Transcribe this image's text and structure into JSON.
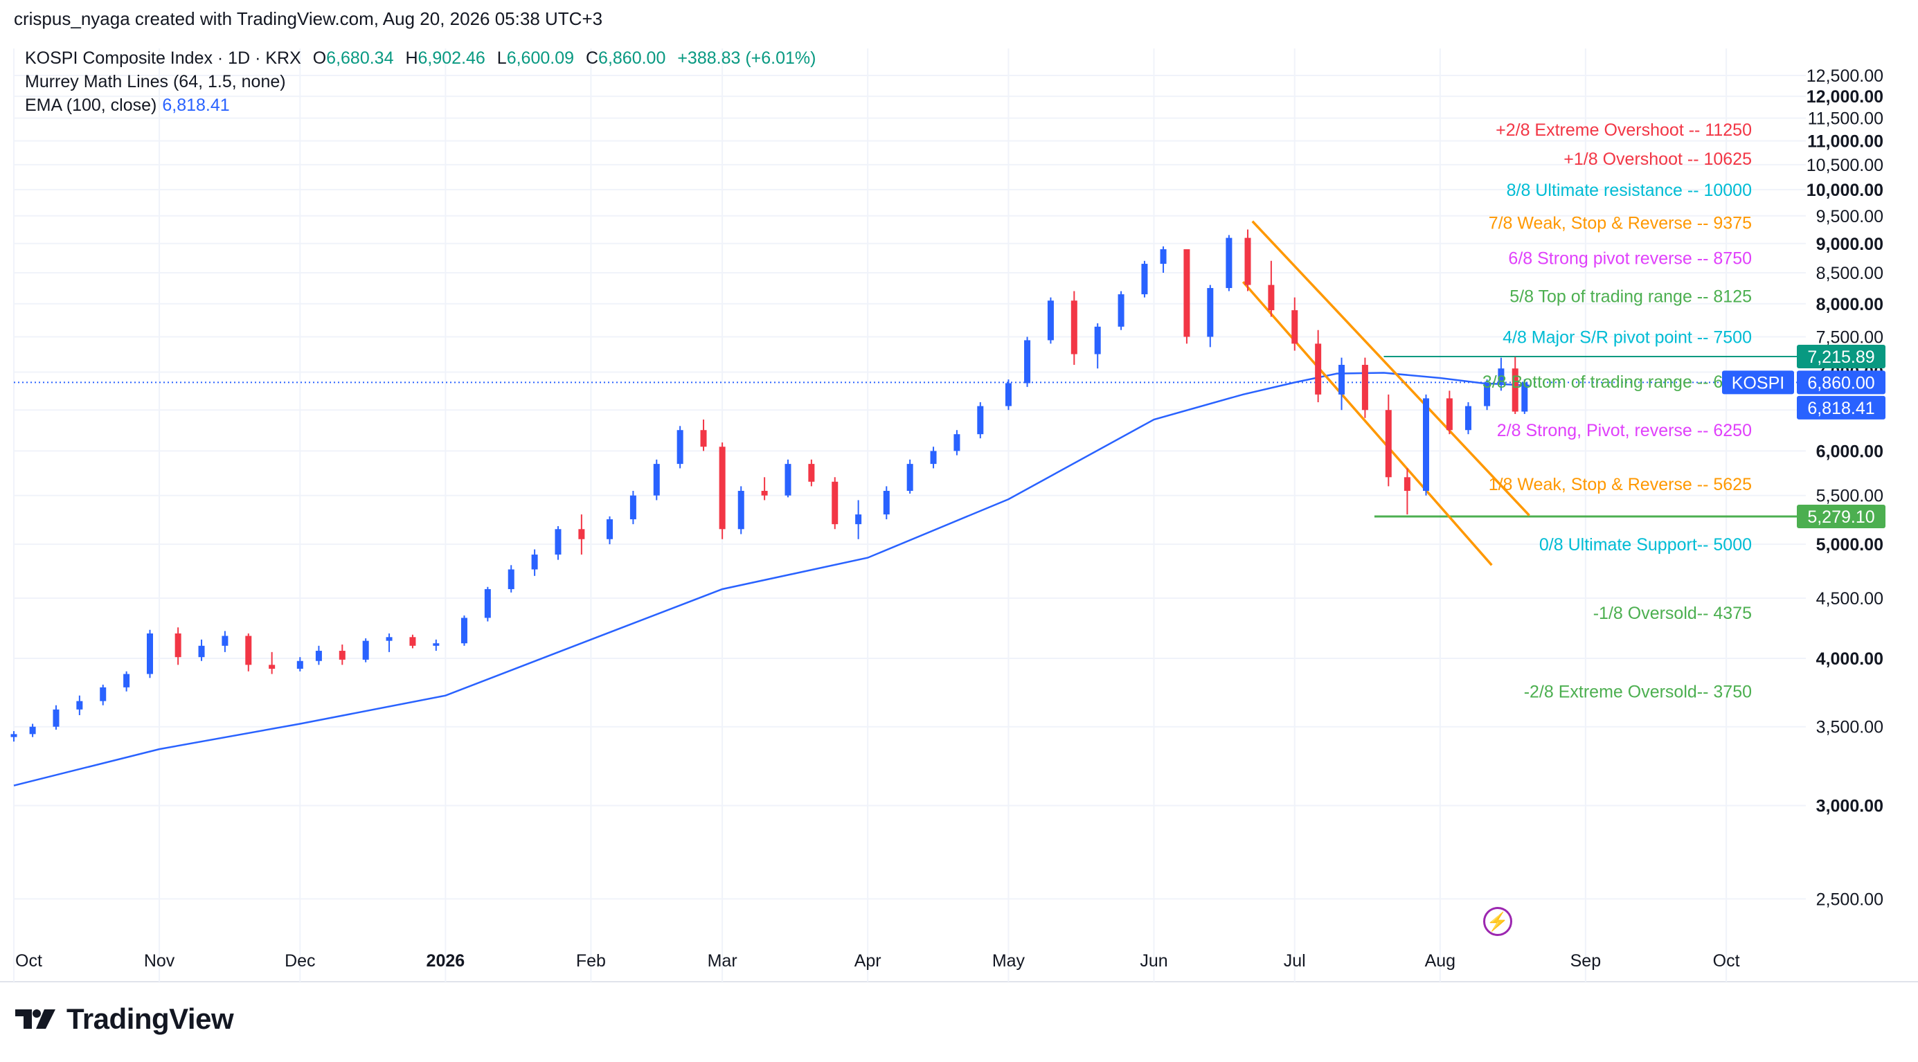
{
  "header": {
    "author_line": "crispus_nyaga created with TradingView.com, Aug 20, 2026 05:38 UTC+3"
  },
  "legend": {
    "symbol": "KOSPI Composite Index · 1D · KRX",
    "o_label": "O",
    "o_value": "6,680.34",
    "h_label": "H",
    "h_value": "6,902.46",
    "l_label": "L",
    "l_value": "6,600.09",
    "c_label": "C",
    "c_value": "6,860.00",
    "change": "+388.83 (+6.01%)",
    "indicator1": "Murrey Math Lines (64, 1.5, none)",
    "indicator2": "EMA (100, close)",
    "indicator2_value": "6,818.41"
  },
  "brand": {
    "name": "TradingView"
  },
  "colors": {
    "up": "#2962ff",
    "down": "#f23645",
    "ema": "#2962ff",
    "channel": "#ff9800",
    "support": "#4caf50",
    "resistance": "#089981",
    "grid": "#f0f3fa",
    "axis_text": "#131722"
  },
  "chart_data": {
    "type": "candlestick",
    "title": "KOSPI Composite Index · 1D · KRX",
    "y_axis": {
      "scale": "log",
      "ticks": [
        "2,500.00",
        "3,000.00",
        "3,500.00",
        "4,000.00",
        "4,500.00",
        "5,000.00",
        "5,500.00",
        "6,000.00",
        "6,500.00",
        "7,000.00",
        "7,500.00",
        "8,000.00",
        "8,500.00",
        "9,000.00",
        "9,500.00",
        "10,000.00",
        "10,500.00",
        "11,000.00",
        "11,500.00",
        "12,000.00",
        "12,500.00"
      ],
      "bold_ticks": [
        "3,000.00",
        "4,000.00",
        "5,000.00",
        "6,000.00",
        "7,000.00",
        "8,000.00",
        "9,000.00",
        "10,000.00",
        "11,000.00",
        "12,000.00"
      ],
      "range": [
        2300,
        13000
      ]
    },
    "x_axis": {
      "labels": [
        "Oct",
        "Nov",
        "Dec",
        "2026",
        "Feb",
        "Mar",
        "Apr",
        "May",
        "Jun",
        "Jul",
        "Aug",
        "Sep",
        "Oct"
      ],
      "bold_labels": [
        "2026"
      ],
      "range": [
        "2025-10-01",
        "2026-10-15"
      ]
    },
    "price_badges": [
      {
        "value": "7,215.89",
        "color": "#089981"
      },
      {
        "label": "KOSPI",
        "value": "6,860.00",
        "color": "#2962ff"
      },
      {
        "value": "6,818.41",
        "color": "#2962ff"
      },
      {
        "value": "5,279.10",
        "color": "#4caf50"
      }
    ],
    "murrey_lines": [
      {
        "text": "+2/8 Extreme Overshoot --  11250",
        "color": "#f23645"
      },
      {
        "text": "+1/8 Overshoot --  10625",
        "color": "#f23645"
      },
      {
        "text": "8/8 Ultimate resistance --  10000",
        "color": "#00bcd4"
      },
      {
        "text": "7/8 Weak, Stop & Reverse --  9375",
        "color": "#ff9800"
      },
      {
        "text": "6/8 Strong pivot reverse --  8750",
        "color": "#e040fb"
      },
      {
        "text": "5/8 Top of trading range --  8125",
        "color": "#4caf50"
      },
      {
        "text": "4/8 Major S/R pivot point --  7500",
        "color": "#00bcd4"
      },
      {
        "text": "3/8 Bottom of trading range --  6875",
        "color": "#4caf50"
      },
      {
        "text": "2/8 Strong, Pivot, reverse --  6250",
        "color": "#e040fb"
      },
      {
        "text": "1/8 Weak, Stop & Reverse --  5625",
        "color": "#ff9800"
      },
      {
        "text": "0/8 Ultimate Support--  5000",
        "color": "#00bcd4"
      },
      {
        "text": "-1/8 Oversold--  4375",
        "color": "#4caf50"
      },
      {
        "text": "-2/8 Extreme Oversold--  3750",
        "color": "#4caf50"
      }
    ],
    "horizontal_lines": [
      {
        "value": 7215.89,
        "from": "2026-07-20",
        "to": "2026-10-15",
        "color": "#089981"
      },
      {
        "value": 5279.1,
        "from": "2026-07-18",
        "to": "2026-10-15",
        "color": "#4caf50"
      }
    ],
    "channel_lines": [
      {
        "from": [
          "2026-06-22",
          9400
        ],
        "to": [
          "2026-08-20",
          5290
        ]
      },
      {
        "from": [
          "2026-06-20",
          8350
        ],
        "to": [
          "2026-08-12",
          4800
        ]
      }
    ],
    "ema": [
      [
        "2025-10-01",
        3120
      ],
      [
        "2025-11-01",
        3350
      ],
      [
        "2025-12-01",
        3520
      ],
      [
        "2026-01-01",
        3720
      ],
      [
        "2026-02-01",
        4150
      ],
      [
        "2026-03-01",
        4580
      ],
      [
        "2026-04-01",
        4870
      ],
      [
        "2026-05-01",
        5460
      ],
      [
        "2026-06-01",
        6380
      ],
      [
        "2026-06-20",
        6700
      ],
      [
        "2026-07-01",
        6860
      ],
      [
        "2026-07-10",
        6980
      ],
      [
        "2026-07-20",
        6990
      ],
      [
        "2026-08-01",
        6920
      ],
      [
        "2026-08-10",
        6850
      ],
      [
        "2026-08-20",
        6818
      ]
    ],
    "candles": [
      [
        "2025-10-01",
        3430,
        3470,
        3400,
        3450
      ],
      [
        "2025-10-05",
        3450,
        3520,
        3430,
        3500
      ],
      [
        "2025-10-10",
        3500,
        3650,
        3480,
        3620
      ],
      [
        "2025-10-15",
        3620,
        3720,
        3580,
        3680
      ],
      [
        "2025-10-20",
        3680,
        3800,
        3650,
        3780
      ],
      [
        "2025-10-25",
        3780,
        3900,
        3750,
        3880
      ],
      [
        "2025-10-30",
        3880,
        4230,
        3850,
        4200
      ],
      [
        "2025-11-05",
        4200,
        4250,
        3950,
        4010
      ],
      [
        "2025-11-10",
        4010,
        4150,
        3980,
        4100
      ],
      [
        "2025-11-15",
        4100,
        4220,
        4050,
        4180
      ],
      [
        "2025-11-20",
        4180,
        4200,
        3900,
        3950
      ],
      [
        "2025-11-25",
        3950,
        4050,
        3880,
        3920
      ],
      [
        "2025-12-01",
        3920,
        4010,
        3900,
        3980
      ],
      [
        "2025-12-05",
        3980,
        4100,
        3950,
        4060
      ],
      [
        "2025-12-10",
        4060,
        4110,
        3950,
        3990
      ],
      [
        "2025-12-15",
        3990,
        4160,
        3970,
        4140
      ],
      [
        "2025-12-20",
        4140,
        4200,
        4050,
        4170
      ],
      [
        "2025-12-25",
        4170,
        4190,
        4080,
        4100
      ],
      [
        "2025-12-30",
        4100,
        4150,
        4060,
        4120
      ],
      [
        "2026-01-05",
        4120,
        4350,
        4100,
        4330
      ],
      [
        "2026-01-10",
        4330,
        4600,
        4300,
        4580
      ],
      [
        "2026-01-15",
        4580,
        4800,
        4550,
        4760
      ],
      [
        "2026-01-20",
        4760,
        4950,
        4700,
        4900
      ],
      [
        "2026-01-25",
        4900,
        5180,
        4850,
        5150
      ],
      [
        "2026-01-30",
        5150,
        5300,
        4900,
        5050
      ],
      [
        "2026-02-05",
        5050,
        5280,
        5000,
        5250
      ],
      [
        "2026-02-10",
        5250,
        5550,
        5200,
        5500
      ],
      [
        "2026-02-15",
        5500,
        5900,
        5450,
        5850
      ],
      [
        "2026-02-20",
        5850,
        6300,
        5800,
        6250
      ],
      [
        "2026-02-25",
        6250,
        6380,
        6000,
        6050
      ],
      [
        "2026-03-01",
        6050,
        6100,
        5050,
        5150
      ],
      [
        "2026-03-05",
        5150,
        5600,
        5100,
        5550
      ],
      [
        "2026-03-10",
        5550,
        5700,
        5450,
        5500
      ],
      [
        "2026-03-15",
        5500,
        5900,
        5480,
        5850
      ],
      [
        "2026-03-20",
        5850,
        5900,
        5600,
        5650
      ],
      [
        "2026-03-25",
        5650,
        5700,
        5150,
        5200
      ],
      [
        "2026-03-30",
        5200,
        5450,
        5050,
        5300
      ],
      [
        "2026-04-05",
        5300,
        5600,
        5250,
        5550
      ],
      [
        "2026-04-10",
        5550,
        5900,
        5520,
        5850
      ],
      [
        "2026-04-15",
        5850,
        6050,
        5800,
        6000
      ],
      [
        "2026-04-20",
        6000,
        6250,
        5950,
        6200
      ],
      [
        "2026-04-25",
        6200,
        6600,
        6150,
        6550
      ],
      [
        "2026-05-01",
        6550,
        6900,
        6500,
        6850
      ],
      [
        "2026-05-05",
        6850,
        7500,
        6800,
        7450
      ],
      [
        "2026-05-10",
        7450,
        8100,
        7400,
        8050
      ],
      [
        "2026-05-15",
        8050,
        8200,
        7100,
        7250
      ],
      [
        "2026-05-20",
        7250,
        7700,
        7050,
        7650
      ],
      [
        "2026-05-25",
        7650,
        8200,
        7600,
        8150
      ],
      [
        "2026-05-30",
        8150,
        8700,
        8100,
        8650
      ],
      [
        "2026-06-03",
        8650,
        8950,
        8500,
        8900
      ],
      [
        "2026-06-08",
        8900,
        8900,
        7400,
        7500
      ],
      [
        "2026-06-13",
        7500,
        8300,
        7350,
        8250
      ],
      [
        "2026-06-17",
        8250,
        9150,
        8200,
        9100
      ],
      [
        "2026-06-21",
        9100,
        9250,
        8200,
        8300
      ],
      [
        "2026-06-26",
        8300,
        8700,
        7800,
        7900
      ],
      [
        "2026-07-01",
        7900,
        8100,
        7300,
        7400
      ],
      [
        "2026-07-06",
        7400,
        7600,
        6600,
        6700
      ],
      [
        "2026-07-11",
        6700,
        7200,
        6500,
        7100
      ],
      [
        "2026-07-16",
        7100,
        7200,
        6400,
        6500
      ],
      [
        "2026-07-21",
        6500,
        6700,
        5600,
        5700
      ],
      [
        "2026-07-25",
        5700,
        5800,
        5300,
        5550
      ],
      [
        "2026-07-29",
        5550,
        6700,
        5500,
        6650
      ],
      [
        "2026-08-03",
        6650,
        6750,
        6200,
        6250
      ],
      [
        "2026-08-07",
        6250,
        6600,
        6200,
        6550
      ],
      [
        "2026-08-11",
        6550,
        6900,
        6500,
        6850
      ],
      [
        "2026-08-14",
        6850,
        7200,
        6750,
        7050
      ],
      [
        "2026-08-17",
        7050,
        7210,
        6450,
        6480
      ],
      [
        "2026-08-19",
        6480,
        6902,
        6450,
        6860
      ]
    ]
  }
}
